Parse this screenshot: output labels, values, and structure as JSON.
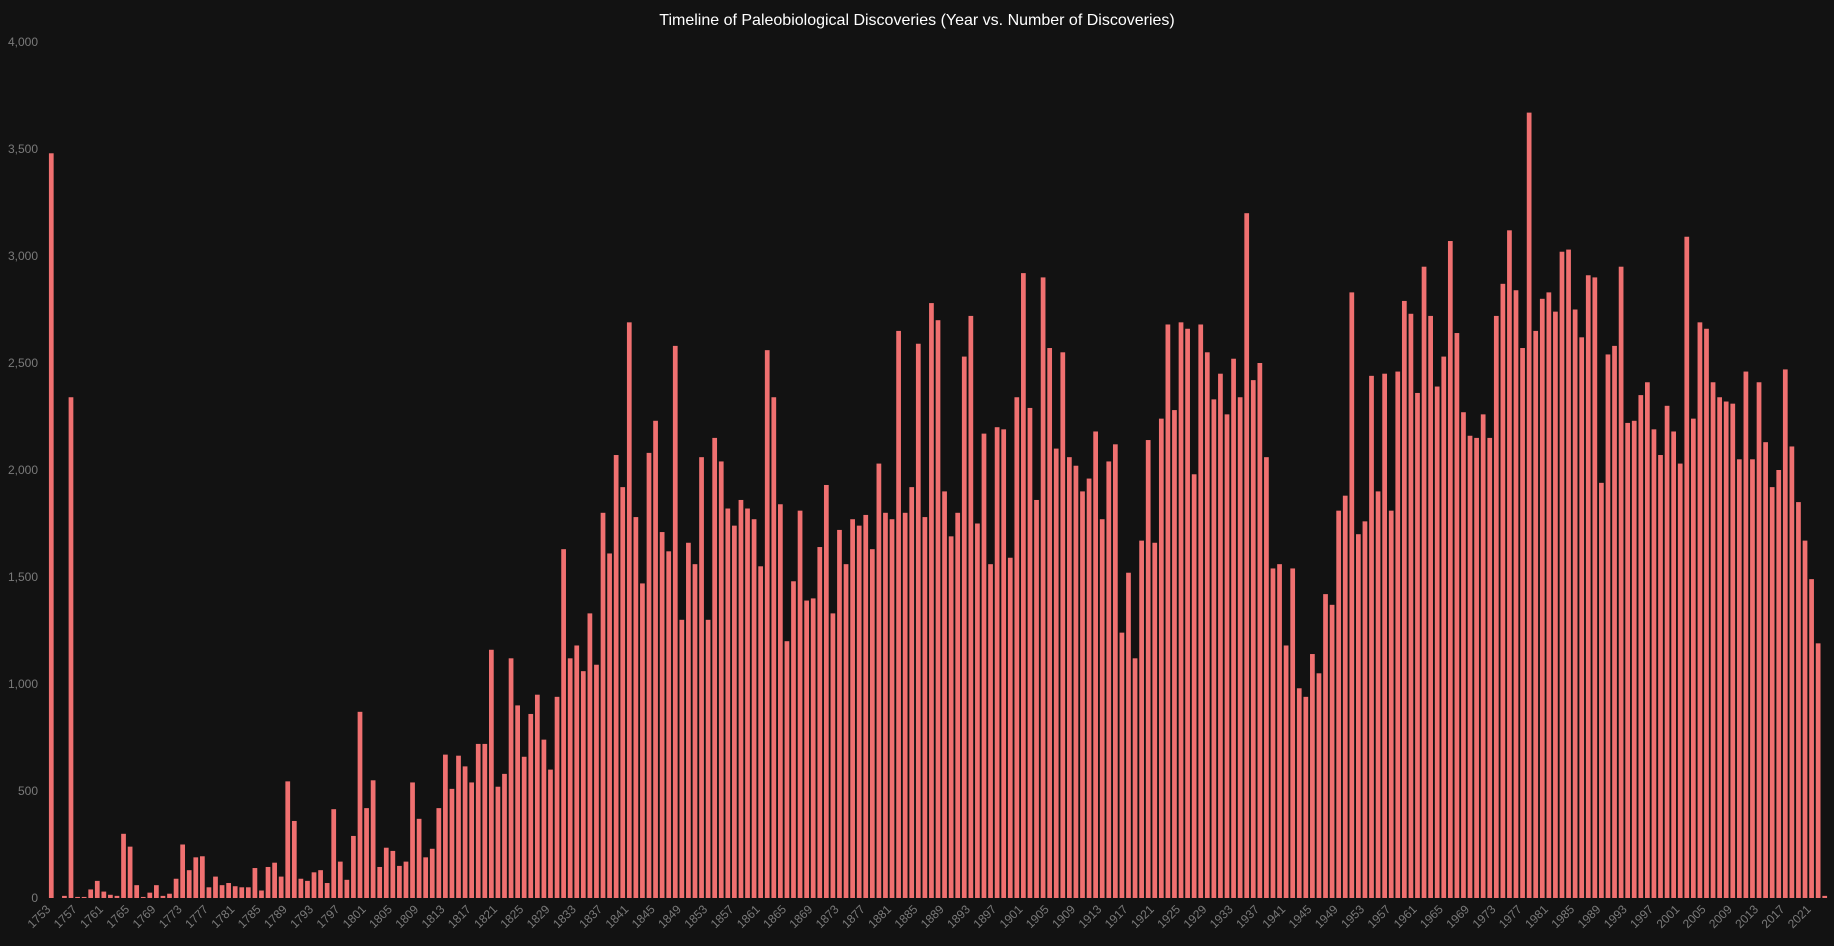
{
  "chart_data": {
    "type": "bar",
    "title": "Timeline of Paleobiological Discoveries (Year vs. Number of Discoveries)",
    "xlabel": "",
    "ylabel": "",
    "ylim": [
      0,
      4000
    ],
    "yticks": [
      "0",
      "500",
      "1,000",
      "1,500",
      "2,000",
      "2,500",
      "3,000",
      "3,500",
      "4,000"
    ],
    "ytick_values": [
      0,
      500,
      1000,
      1500,
      2000,
      2500,
      3000,
      3500,
      4000
    ],
    "x_start": 1753,
    "x_end": 2024,
    "x_tick_step": 4,
    "bar_color": "#f07070",
    "background": "#121212",
    "grid": false,
    "values": [
      3480,
      0,
      10,
      2340,
      5,
      5,
      40,
      80,
      30,
      15,
      10,
      300,
      240,
      60,
      5,
      25,
      60,
      10,
      20,
      90,
      250,
      130,
      190,
      195,
      50,
      100,
      60,
      70,
      55,
      50,
      50,
      140,
      35,
      145,
      165,
      100,
      545,
      360,
      90,
      80,
      120,
      130,
      70,
      415,
      170,
      85,
      290,
      870,
      420,
      550,
      145,
      235,
      220,
      150,
      170,
      540,
      370,
      190,
      230,
      420,
      670,
      510,
      665,
      615,
      540,
      720,
      720,
      1160,
      520,
      580,
      1120,
      900,
      660,
      860,
      950,
      740,
      600,
      940,
      1630,
      1120,
      1180,
      1060,
      1330,
      1090,
      1800,
      1610,
      2070,
      1920,
      2690,
      1780,
      1470,
      2080,
      2230,
      1710,
      1620,
      2580,
      1300,
      1660,
      1560,
      2060,
      1300,
      2150,
      2040,
      1820,
      1740,
      1860,
      1820,
      1770,
      1550,
      2560,
      2340,
      1840,
      1200,
      1480,
      1810,
      1390,
      1400,
      1640,
      1930,
      1330,
      1720,
      1560,
      1770,
      1740,
      1790,
      1630,
      2030,
      1800,
      1770,
      2650,
      1800,
      1920,
      2590,
      1780,
      2780,
      2700,
      1900,
      1690,
      1800,
      2530,
      2720,
      1750,
      2170,
      1560,
      2200,
      2190,
      1590,
      2340,
      2920,
      2290,
      1860,
      2900,
      2570,
      2100,
      2550,
      2060,
      2020,
      1900,
      1960,
      2180,
      1770,
      2040,
      2120,
      1240,
      1520,
      1120,
      1670,
      2140,
      1660,
      2240,
      2680,
      2280,
      2690,
      2660,
      1980,
      2680,
      2550,
      2330,
      2450,
      2260,
      2520,
      2340,
      3200,
      2420,
      2500,
      2060,
      1540,
      1560,
      1180,
      1540,
      980,
      940,
      1140,
      1050,
      1420,
      1370,
      1810,
      1880,
      2830,
      1700,
      1760,
      2440,
      1900,
      2450,
      1810,
      2460,
      2790,
      2730,
      2360,
      2950,
      2720,
      2390,
      2530,
      3070,
      2640,
      2270,
      2160,
      2150,
      2260,
      2150,
      2720,
      2870,
      3120,
      2840,
      2570,
      3670,
      2650,
      2800,
      2830,
      2740,
      3020,
      3030,
      2750,
      2620,
      2910,
      2900,
      1940,
      2540,
      2580,
      2950,
      2220,
      2230,
      2350,
      2410,
      2190,
      2070,
      2300,
      2180,
      2030,
      3090,
      2240,
      2690,
      2660,
      2410,
      2340,
      2320,
      2310,
      2050,
      2460,
      2050,
      2410,
      2130,
      1920,
      2000,
      2470,
      2110,
      1850,
      1670,
      1490,
      1190,
      10
    ]
  }
}
